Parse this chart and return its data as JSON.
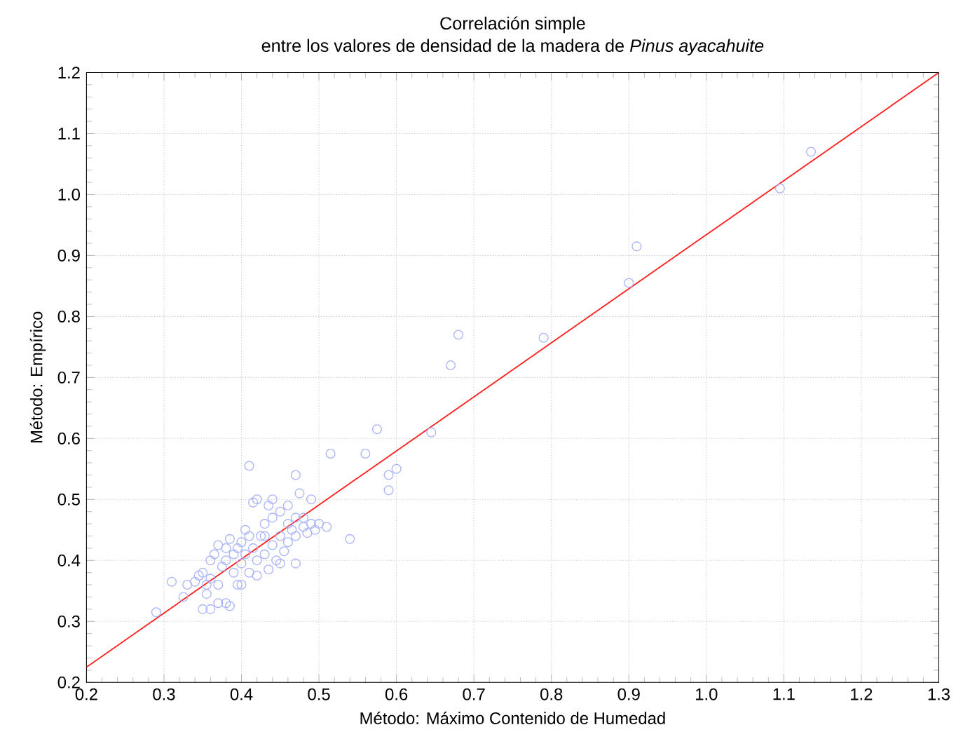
{
  "chart_data": {
    "type": "scatter",
    "title": "Correlación simple",
    "subtitle": "entre los valores de densidad de la madera de *Pinus ayacahuite*",
    "xlabel": "Método: Máximo Contenido de Humedad",
    "ylabel": "Método: Empírico",
    "xlim": [
      0.2,
      1.3
    ],
    "ylim": [
      0.2,
      1.2
    ],
    "xticks": [
      0.2,
      0.3,
      0.4,
      0.5,
      0.6,
      0.7,
      0.8,
      0.9,
      {
        "value": 1,
        "label": "1.0"
      },
      1.1,
      1.2,
      1.3
    ],
    "yticks": [
      0.2,
      0.3,
      0.4,
      0.5,
      0.6,
      0.7,
      0.8,
      0.9,
      {
        "value": 1,
        "label": "1.0"
      },
      1.1,
      1.2
    ],
    "grid": true,
    "marker": "circle",
    "series": [
      {
        "color": "#aab4f8",
        "x": [
          0.29,
          0.31,
          0.325,
          0.33,
          0.345,
          0.35,
          0.355,
          0.36,
          0.37,
          0.38,
          0.385,
          0.41,
          0.415,
          0.42,
          0.435,
          0.44,
          0.47,
          0.475,
          0.48,
          0.49,
          0.5,
          0.51,
          0.515,
          0.54,
          0.56,
          0.575,
          0.59,
          0.59,
          0.6,
          0.645,
          0.67,
          0.68,
          0.79,
          0.9,
          0.91,
          1.095,
          1.135,
          0.47,
          0.35,
          0.36,
          0.365,
          0.37,
          0.375,
          0.38,
          0.38,
          0.385,
          0.39,
          0.39,
          0.395,
          0.4,
          0.4,
          0.405,
          0.405,
          0.41,
          0.41,
          0.415,
          0.42,
          0.42,
          0.425,
          0.43,
          0.43,
          0.435,
          0.44,
          0.44,
          0.445,
          0.45,
          0.45,
          0.455,
          0.46,
          0.46,
          0.465,
          0.47,
          0.47,
          0.48,
          0.485,
          0.49,
          0.495,
          0.36,
          0.37,
          0.395,
          0.4,
          0.34,
          0.355,
          0.43,
          0.45,
          0.46
        ],
        "values": [
          0.315,
          0.365,
          0.34,
          0.36,
          0.375,
          0.32,
          0.345,
          0.32,
          0.33,
          0.33,
          0.325,
          0.555,
          0.495,
          0.5,
          0.49,
          0.5,
          0.54,
          0.51,
          0.47,
          0.5,
          0.46,
          0.455,
          0.575,
          0.435,
          0.575,
          0.615,
          0.515,
          0.54,
          0.55,
          0.61,
          0.72,
          0.77,
          0.765,
          0.855,
          0.915,
          1.01,
          1.07,
          0.395,
          0.38,
          0.4,
          0.41,
          0.425,
          0.39,
          0.42,
          0.4,
          0.435,
          0.38,
          0.41,
          0.42,
          0.395,
          0.43,
          0.45,
          0.41,
          0.44,
          0.38,
          0.42,
          0.4,
          0.375,
          0.44,
          0.46,
          0.41,
          0.385,
          0.425,
          0.47,
          0.4,
          0.44,
          0.48,
          0.415,
          0.46,
          0.43,
          0.45,
          0.47,
          0.44,
          0.455,
          0.445,
          0.46,
          0.45,
          0.37,
          0.36,
          0.36,
          0.36,
          0.365,
          0.36,
          0.44,
          0.395,
          0.49
        ]
      },
      {
        "type": "line",
        "color": "#ff2020",
        "marker": "none",
        "line_style": "solid",
        "x": [
          0.2,
          1.3
        ],
        "values": [
          0.225,
          1.2
        ]
      }
    ]
  }
}
